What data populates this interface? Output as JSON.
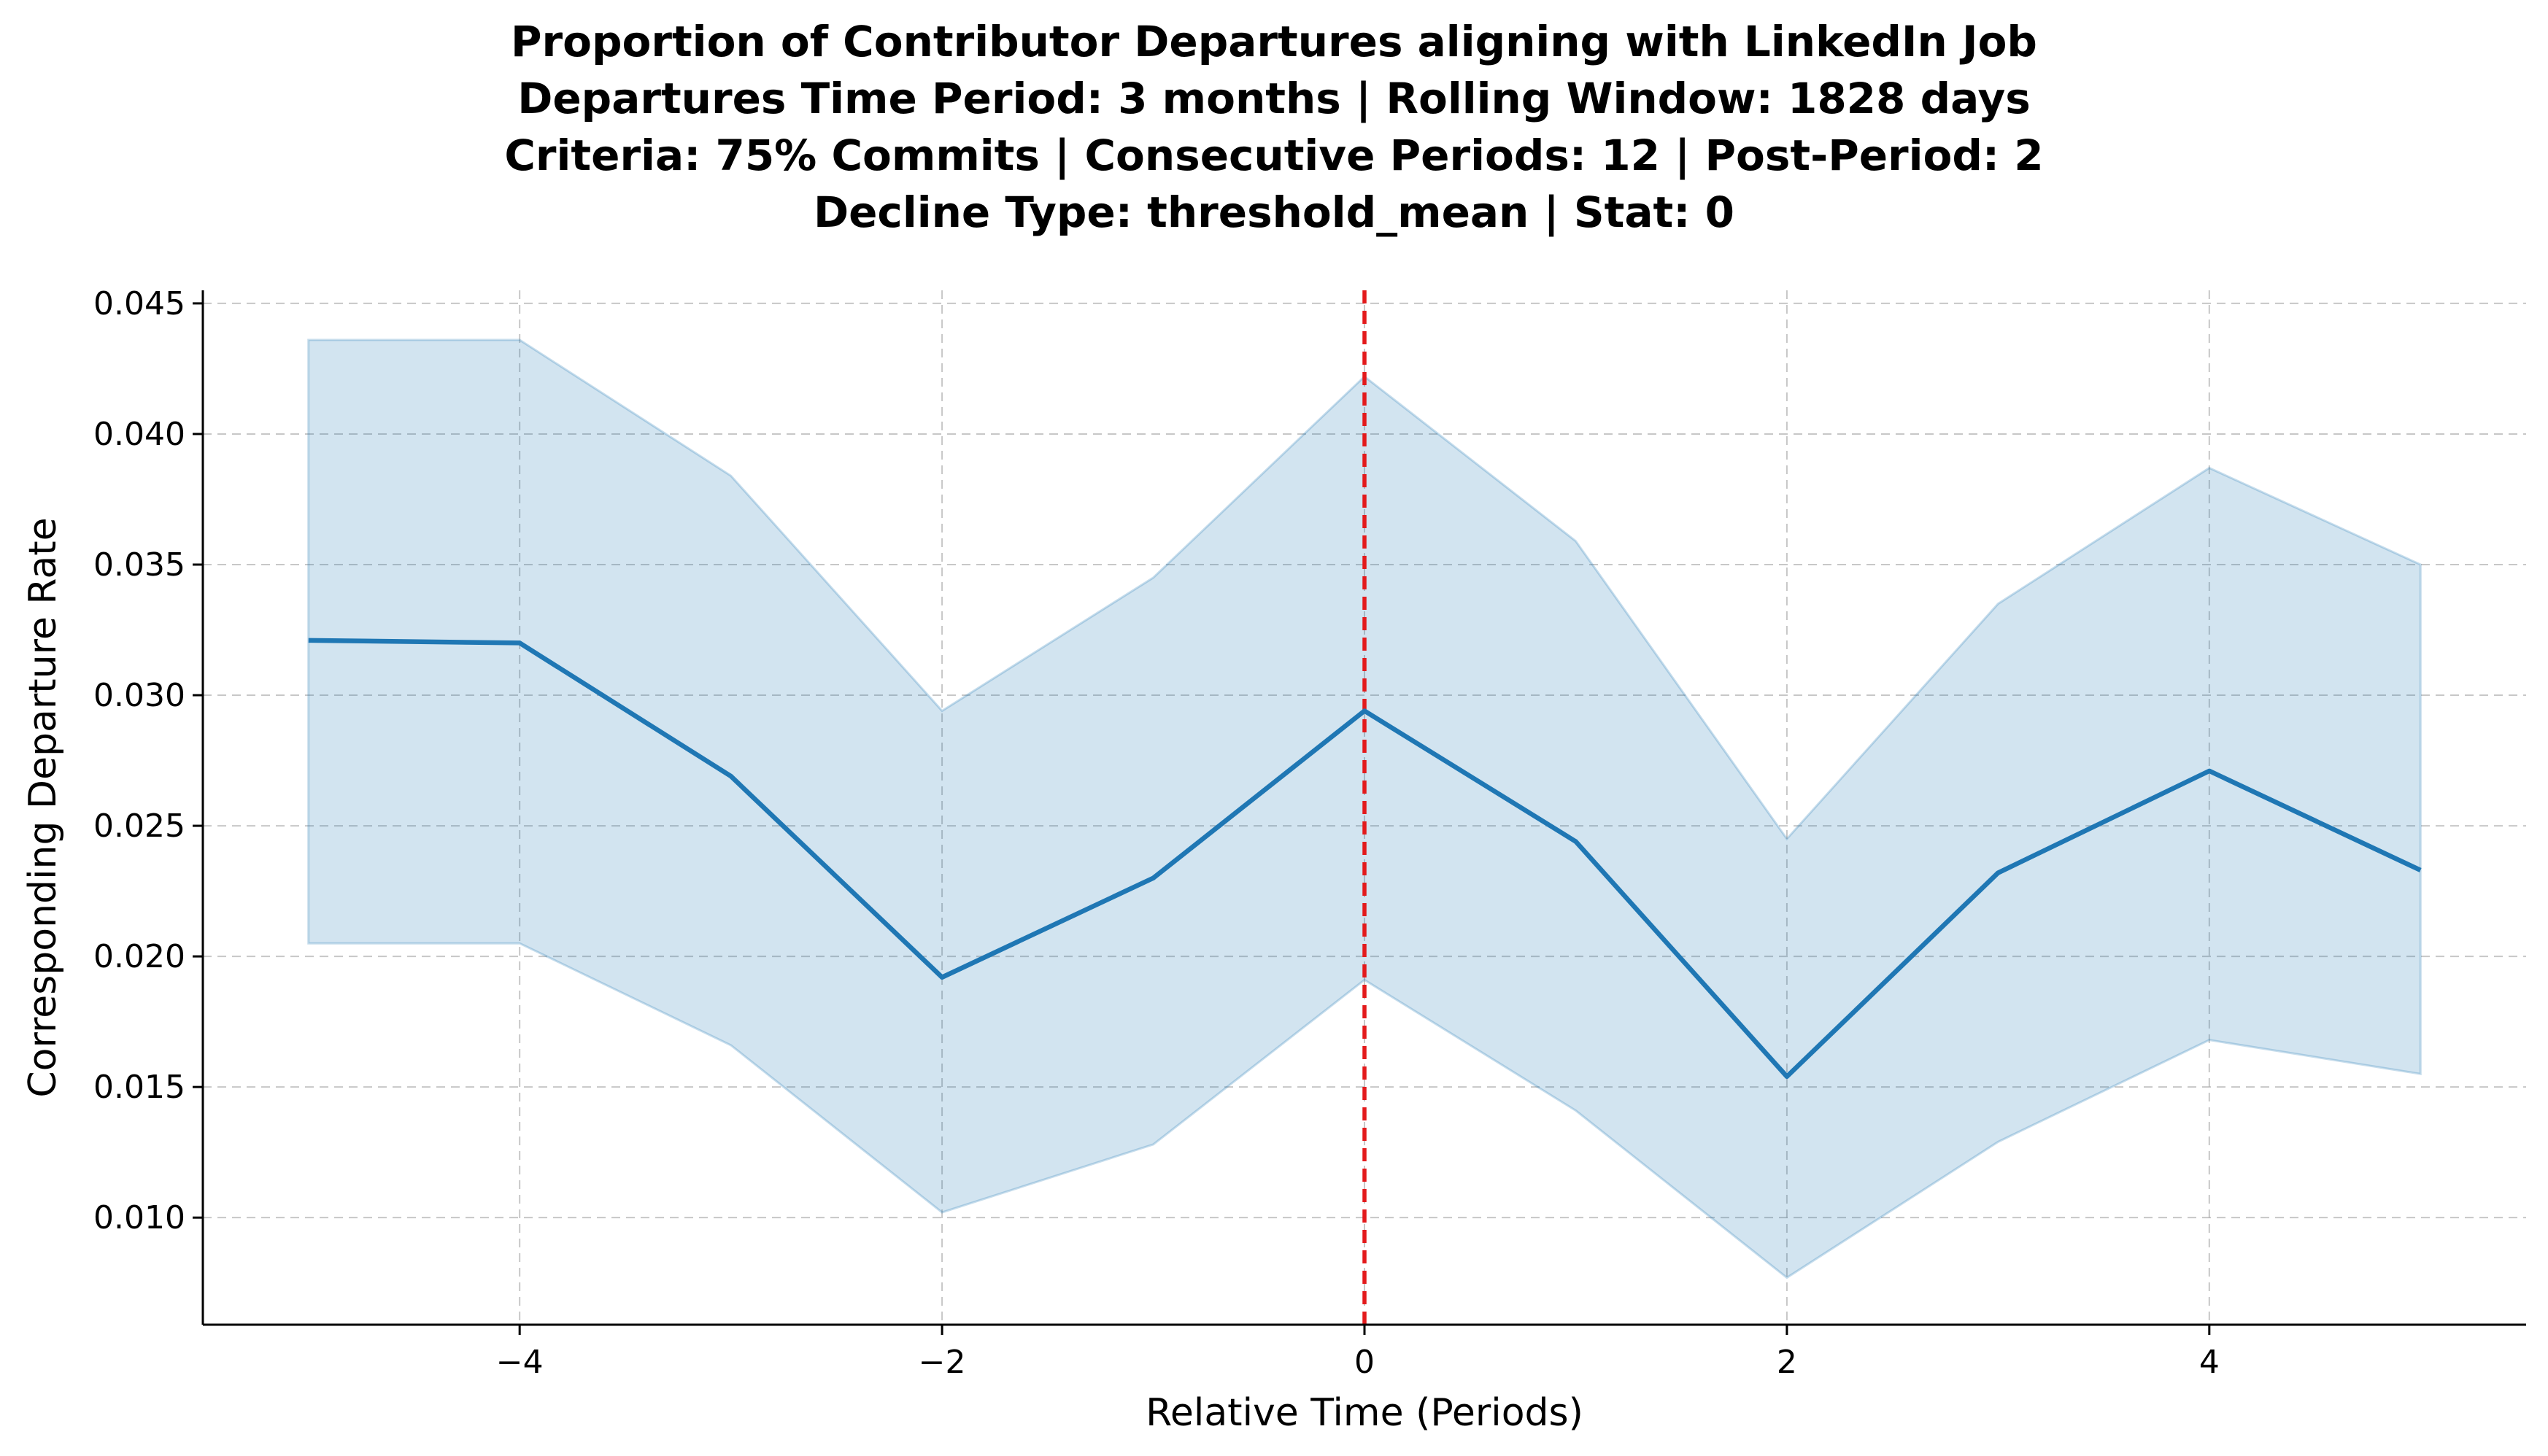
{
  "chart_data": {
    "type": "line",
    "title_lines": [
      "Proportion of Contributor Departures aligning with LinkedIn Job",
      "Departures Time Period: 3 months | Rolling Window: 1828 days",
      "Criteria: 75% Commits | Consecutive Periods: 12 | Post-Period: 2",
      "Decline Type: threshold_mean | Stat: 0"
    ],
    "xlabel": "Relative Time (Periods)",
    "ylabel": "Corresponding Departure Rate",
    "xlim": [
      -5.5,
      5.5
    ],
    "ylim": [
      0.0059,
      0.0455
    ],
    "xticks": [
      -4,
      -2,
      0,
      2,
      4
    ],
    "xtick_labels": [
      "−4",
      "−2",
      "0",
      "2",
      "4"
    ],
    "yticks": [
      0.01,
      0.015,
      0.02,
      0.025,
      0.03,
      0.035,
      0.04,
      0.045
    ],
    "ytick_labels": [
      "0.010",
      "0.015",
      "0.020",
      "0.025",
      "0.030",
      "0.035",
      "0.040",
      "0.045"
    ],
    "grid": true,
    "vline_x": 0,
    "colors": {
      "line": "#1f77b4",
      "band": "#1f77b4",
      "vline": "#e31a1c",
      "grid": "#b0b0b0"
    },
    "x": [
      -5,
      -4,
      -3,
      -2,
      -1,
      0,
      1,
      2,
      3,
      4,
      5
    ],
    "series": [
      {
        "values": [
          0.0321,
          0.032,
          0.0269,
          0.0192,
          0.023,
          0.0294,
          0.0244,
          0.0154,
          0.0232,
          0.0271,
          0.0233
        ],
        "lower": [
          0.0205,
          0.0205,
          0.0166,
          0.0102,
          0.0128,
          0.0191,
          0.0141,
          0.0077,
          0.0129,
          0.0168,
          0.0155
        ],
        "upper": [
          0.0436,
          0.0436,
          0.0384,
          0.0294,
          0.0345,
          0.0422,
          0.0359,
          0.0245,
          0.0335,
          0.0387,
          0.035
        ]
      }
    ]
  }
}
